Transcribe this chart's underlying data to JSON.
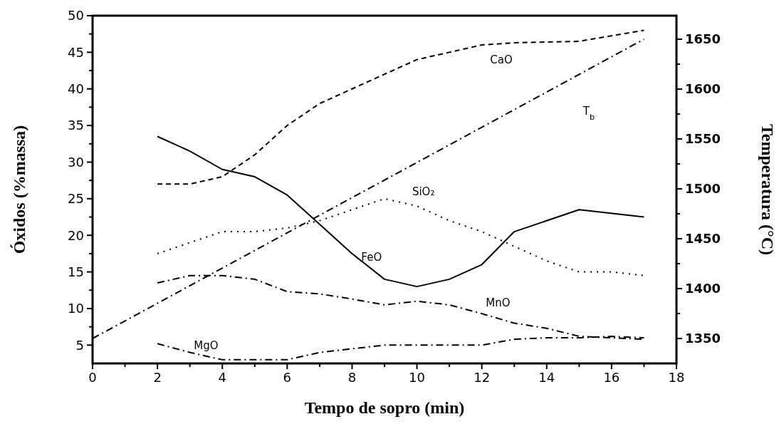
{
  "chart_data": {
    "type": "line",
    "xlabel": "Tempo de sopro (min)",
    "ylabel": "Óxidos (%massa)",
    "y2label": "Temperatura (°C)",
    "xlim": [
      0,
      18
    ],
    "xticks": [
      0,
      {
        "value": 1,
        "label": null
      },
      2,
      {
        "value": 3,
        "label": null
      },
      4,
      {
        "value": 5,
        "label": null
      },
      6,
      {
        "value": 7,
        "label": null
      },
      8,
      {
        "value": 9,
        "label": null
      },
      10,
      {
        "value": 11,
        "label": null
      },
      12,
      {
        "value": 13,
        "label": null
      },
      14,
      {
        "value": 15,
        "label": null
      },
      16,
      {
        "value": 17,
        "label": null
      },
      18
    ],
    "ylim": [
      2.5,
      50
    ],
    "yticks": [
      5,
      {
        "value": 7.5,
        "label": null
      },
      10,
      {
        "value": 12.5,
        "label": null
      },
      15,
      {
        "value": 17.5,
        "label": null
      },
      20,
      {
        "value": 22.5,
        "label": null
      },
      25,
      {
        "value": 27.5,
        "label": null
      },
      30,
      {
        "value": 32.5,
        "label": null
      },
      35,
      {
        "value": 37.5,
        "label": null
      },
      40,
      {
        "value": 42.5,
        "label": null
      },
      45,
      {
        "value": 47.5,
        "label": null
      },
      50
    ],
    "y2lim": [
      1325,
      1673.6
    ],
    "y2ticks": [
      1350,
      {
        "value": 1375,
        "label": null
      },
      1400,
      {
        "value": 1425,
        "label": null
      },
      1450,
      {
        "value": 1475,
        "label": null
      },
      1500,
      {
        "value": 1525,
        "label": null
      },
      1550,
      {
        "value": 1575,
        "label": null
      },
      1600,
      {
        "value": 1625,
        "label": null
      },
      1650
    ],
    "grid": false,
    "marker": "none",
    "series": [
      {
        "name": "FeO",
        "color": "#000000",
        "line_style": "solid",
        "x": [
          2,
          3,
          4,
          5,
          6,
          7,
          8,
          9,
          10,
          11,
          12,
          13,
          15,
          17
        ],
        "values": [
          33.5,
          31.5,
          29,
          28,
          25.5,
          21.5,
          17.5,
          14,
          13,
          14,
          16,
          20.5,
          23.5,
          22.5
        ]
      },
      {
        "name": "CaO",
        "color": "#000000",
        "line_style": "dashed",
        "x": [
          2,
          3,
          4,
          5,
          6,
          7,
          8,
          9,
          10,
          11,
          12,
          13,
          15,
          17
        ],
        "values": [
          27,
          27,
          28,
          31,
          35,
          38,
          40,
          42,
          44,
          45,
          46,
          46.3,
          46.5,
          48
        ]
      },
      {
        "name": "SiO₂",
        "color": "#000000",
        "line_style": "dotted",
        "x": [
          2,
          3,
          4,
          5,
          6,
          7,
          8,
          9,
          10,
          11,
          12,
          13,
          14,
          15,
          16,
          17
        ],
        "values": [
          17.5,
          19,
          20.5,
          20.5,
          21,
          22,
          23.5,
          25,
          24,
          22,
          20.5,
          18.5,
          16.5,
          15,
          15,
          14.5
        ]
      },
      {
        "name": "MnO",
        "color": "#000000",
        "line_style": "dashdot",
        "x": [
          2,
          3,
          4,
          5,
          6,
          7,
          8,
          9,
          10,
          11,
          12,
          13,
          14,
          15,
          16,
          17
        ],
        "values": [
          13.5,
          14.5,
          14.5,
          14,
          12.3,
          12,
          11.3,
          10.5,
          11,
          10.5,
          9.3,
          8,
          7.3,
          6.2,
          6,
          5.8
        ]
      },
      {
        "name": "MgO",
        "color": "#000000",
        "line_style": "dashdot",
        "x": [
          2,
          3,
          4,
          5,
          6,
          7,
          8,
          9,
          10,
          11,
          12,
          13,
          14,
          15,
          16,
          17
        ],
        "values": [
          5.2,
          4,
          3,
          3,
          3,
          4,
          4.5,
          5,
          5,
          5,
          5,
          5.8,
          6,
          6,
          6.2,
          6
        ]
      },
      {
        "name": "T$_{b}$",
        "color": "#000000",
        "line_style": "dashdot",
        "axis": "y2",
        "x": [
          0,
          17
        ],
        "values": [
          1350,
          1650
        ]
      }
    ]
  }
}
